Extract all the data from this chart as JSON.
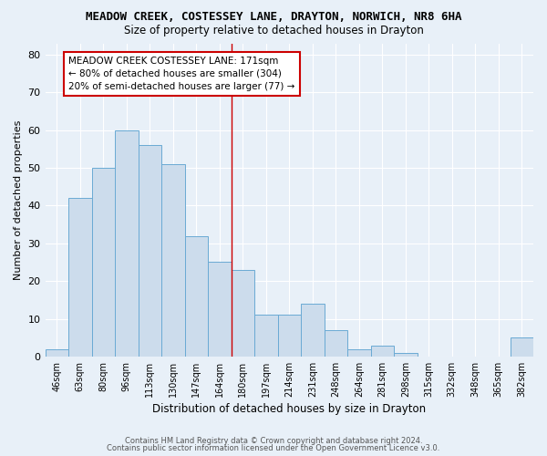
{
  "title": "MEADOW CREEK, COSTESSEY LANE, DRAYTON, NORWICH, NR8 6HA",
  "subtitle": "Size of property relative to detached houses in Drayton",
  "xlabel": "Distribution of detached houses by size in Drayton",
  "ylabel": "Number of detached properties",
  "bar_labels": [
    "46sqm",
    "63sqm",
    "80sqm",
    "96sqm",
    "113sqm",
    "130sqm",
    "147sqm",
    "164sqm",
    "180sqm",
    "197sqm",
    "214sqm",
    "231sqm",
    "248sqm",
    "264sqm",
    "281sqm",
    "298sqm",
    "315sqm",
    "332sqm",
    "348sqm",
    "365sqm",
    "382sqm"
  ],
  "bar_values": [
    2,
    42,
    50,
    60,
    56,
    51,
    32,
    25,
    23,
    11,
    11,
    14,
    7,
    2,
    3,
    1,
    0,
    0,
    0,
    0,
    5
  ],
  "bar_color": "#ccdcec",
  "bar_edgecolor": "#6aaad4",
  "background_color": "#e8f0f8",
  "grid_color": "#ffffff",
  "vline_x": 7.5,
  "vline_color": "#cc0000",
  "annotation_text": "MEADOW CREEK COSTESSEY LANE: 171sqm\n← 80% of detached houses are smaller (304)\n20% of semi-detached houses are larger (77) →",
  "annotation_box_edgecolor": "#cc0000",
  "annotation_box_facecolor": "#ffffff",
  "ylim": [
    0,
    83
  ],
  "yticks": [
    0,
    10,
    20,
    30,
    40,
    50,
    60,
    70,
    80
  ],
  "footer1": "Contains HM Land Registry data © Crown copyright and database right 2024.",
  "footer2": "Contains public sector information licensed under the Open Government Licence v3.0."
}
